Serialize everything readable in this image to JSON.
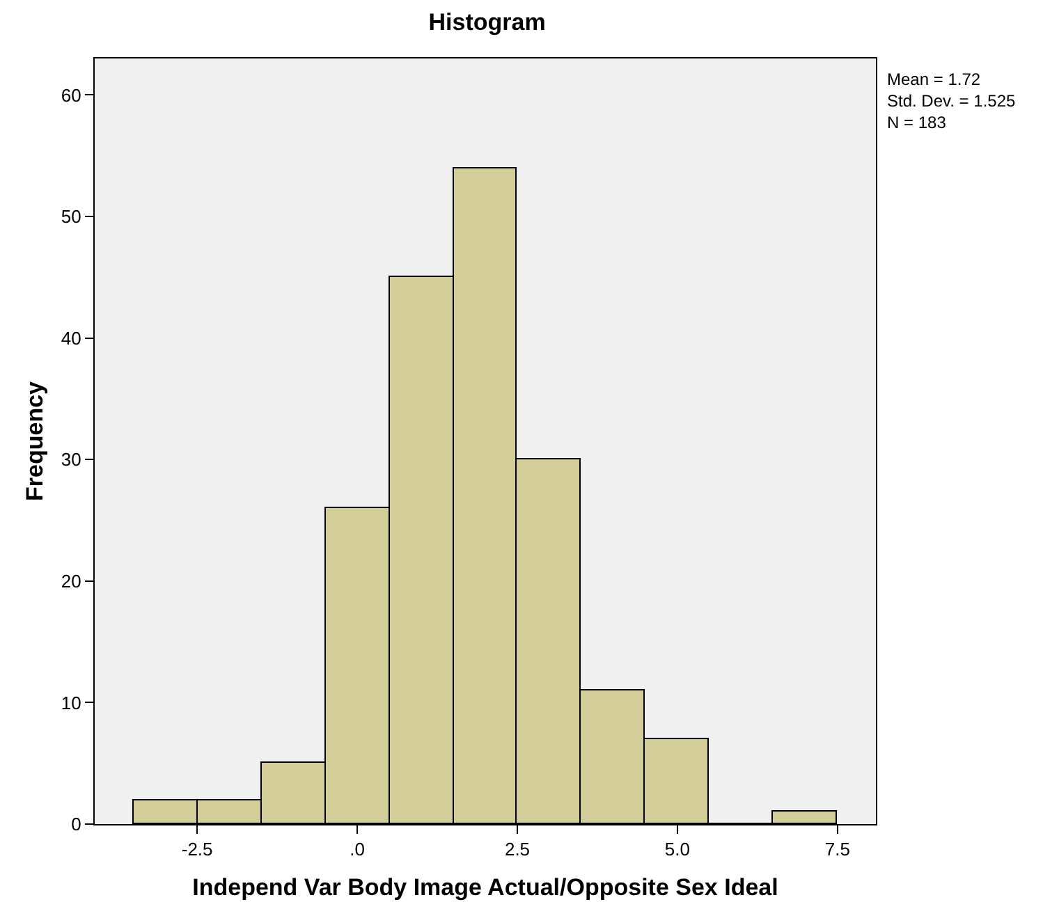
{
  "chart_data": {
    "type": "histogram",
    "title": "Histogram",
    "xlabel": "Independ Var Body Image Actual/Opposite Sex Ideal",
    "ylabel": "Frequency",
    "bins": [
      -3.5,
      -2.5,
      -1.5,
      -0.5,
      0.5,
      1.5,
      2.5,
      3.5,
      4.5,
      5.5,
      6.5,
      7.5
    ],
    "values": [
      2,
      2,
      5,
      26,
      45,
      54,
      30,
      11,
      7,
      0,
      1
    ],
    "color": "#d3ce97",
    "xlim": [
      -4.1,
      8.1
    ],
    "xticks": [
      -2.5,
      {
        "value": 0,
        "label": ".0"
      },
      2.5,
      {
        "value": 5,
        "label": "5.0"
      },
      7.5
    ],
    "ylim": [
      0,
      63
    ],
    "yticks": [
      0,
      10,
      20,
      30,
      40,
      50,
      60
    ],
    "annotations": [
      "Mean = 1.72",
      "Std. Dev. = 1.525",
      "N = 183"
    ]
  }
}
